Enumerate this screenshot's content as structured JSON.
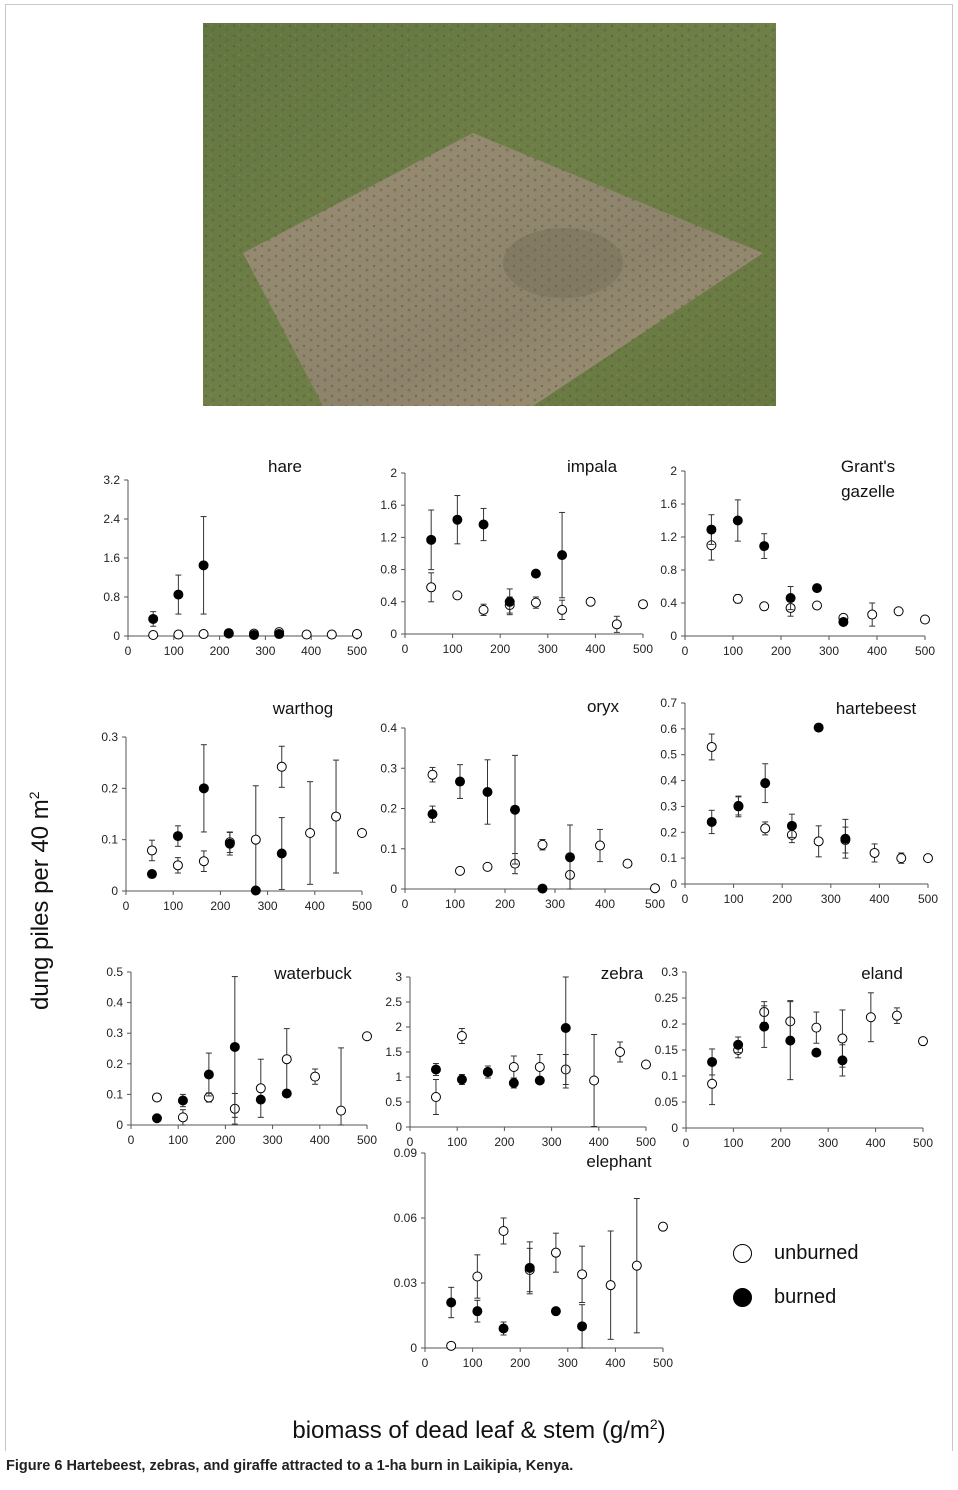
{
  "caption": {
    "label": "Figure 6",
    "text": "Hartebeest, zebras, and giraffe attracted to a 1-ha burn in Laikipia, Kenya."
  },
  "y_axis_label": "dung piles per 40 m",
  "y_axis_label_sup": "2",
  "x_axis_label": "biomass of dead leaf & stem (g/m",
  "x_axis_label_sup": "2",
  "x_axis_label_close": ")",
  "legend": {
    "unburned": "unburned",
    "burned": "burned"
  },
  "colors": {
    "burned": "#000000",
    "unburned": "#ffffff",
    "axis": "#555555"
  },
  "chart_data": [
    {
      "type": "scatter",
      "title": "hare",
      "xlim": [
        0,
        500
      ],
      "xticks": [
        "0",
        "100",
        "200",
        "300",
        "400",
        "500"
      ],
      "ylim": [
        0,
        3.2
      ],
      "yticks": [
        "0",
        "0.8",
        "1.6",
        "2.4",
        "3.2"
      ],
      "series": [
        {
          "name": "burned",
          "points": [
            [
              55,
              0.35,
              0.15
            ],
            [
              110,
              0.85,
              0.4
            ],
            [
              165,
              1.45,
              1.0
            ],
            [
              220,
              0.06,
              0.03
            ],
            [
              275,
              0.02,
              0.02
            ],
            [
              330,
              0.04,
              0.03
            ]
          ]
        },
        {
          "name": "unburned",
          "points": [
            [
              55,
              0.02,
              0
            ],
            [
              110,
              0.03,
              0
            ],
            [
              165,
              0.04,
              0
            ],
            [
              220,
              0.05,
              0
            ],
            [
              275,
              0.05,
              0
            ],
            [
              330,
              0.08,
              0
            ],
            [
              390,
              0.03,
              0
            ],
            [
              445,
              0.03,
              0
            ],
            [
              500,
              0.04,
              0
            ]
          ]
        }
      ]
    },
    {
      "type": "scatter",
      "title": "impala",
      "xlim": [
        0,
        500
      ],
      "xticks": [
        "0",
        "100",
        "200",
        "300",
        "400",
        "500"
      ],
      "ylim": [
        0,
        2
      ],
      "yticks": [
        "0",
        "0.4",
        "0.8",
        "1.2",
        "1.6",
        "2"
      ],
      "series": [
        {
          "name": "burned",
          "points": [
            [
              55,
              1.17,
              0.37
            ],
            [
              110,
              1.42,
              0.3
            ],
            [
              165,
              1.36,
              0.2
            ],
            [
              220,
              0.4,
              0.16
            ],
            [
              275,
              0.75,
              0
            ],
            [
              330,
              0.98,
              0.53
            ]
          ]
        },
        {
          "name": "unburned",
          "points": [
            [
              55,
              0.58,
              0.18
            ],
            [
              110,
              0.48,
              0.04
            ],
            [
              165,
              0.3,
              0.07
            ],
            [
              220,
              0.36,
              0.1
            ],
            [
              275,
              0.39,
              0.07
            ],
            [
              330,
              0.3,
              0.12
            ],
            [
              390,
              0.4,
              0
            ],
            [
              445,
              0.12,
              0.1
            ],
            [
              500,
              0.37,
              0
            ]
          ]
        }
      ]
    },
    {
      "type": "scatter",
      "title": "Grant's",
      "title2": "gazelle",
      "xlim": [
        0,
        500
      ],
      "xticks": [
        "0",
        "100",
        "200",
        "300",
        "400",
        "500"
      ],
      "ylim": [
        0,
        2
      ],
      "yticks": [
        "0",
        "0.4",
        "0.8",
        "1.2",
        "1.6",
        "2"
      ],
      "series": [
        {
          "name": "burned",
          "points": [
            [
              55,
              1.29,
              0.18
            ],
            [
              110,
              1.4,
              0.25
            ],
            [
              165,
              1.09,
              0.15
            ],
            [
              220,
              0.46,
              0.14
            ],
            [
              275,
              0.58,
              0
            ],
            [
              330,
              0.17,
              0.04
            ]
          ]
        },
        {
          "name": "unburned",
          "points": [
            [
              55,
              1.1,
              0.18
            ],
            [
              110,
              0.45,
              0.05
            ],
            [
              165,
              0.36,
              0
            ],
            [
              220,
              0.34,
              0.1
            ],
            [
              275,
              0.37,
              0
            ],
            [
              330,
              0.22,
              0.03
            ],
            [
              390,
              0.26,
              0.14
            ],
            [
              445,
              0.3,
              0
            ],
            [
              500,
              0.2,
              0
            ]
          ]
        }
      ]
    },
    {
      "type": "scatter",
      "title": "warthog",
      "xlim": [
        0,
        500
      ],
      "xticks": [
        "0",
        "100",
        "200",
        "300",
        "400",
        "500"
      ],
      "ylim": [
        0,
        0.3
      ],
      "yticks": [
        "0",
        "0.1",
        "0.2",
        "0.3"
      ],
      "series": [
        {
          "name": "burned",
          "points": [
            [
              55,
              0.033,
              0
            ],
            [
              110,
              0.107,
              0.02
            ],
            [
              165,
              0.2,
              0.085
            ],
            [
              220,
              0.092,
              0.022
            ],
            [
              275,
              0.001,
              0
            ],
            [
              330,
              0.073,
              0.07
            ]
          ]
        },
        {
          "name": "unburned",
          "points": [
            [
              55,
              0.079,
              0.02
            ],
            [
              110,
              0.05,
              0.015
            ],
            [
              165,
              0.058,
              0.02
            ],
            [
              220,
              0.095,
              0.02
            ],
            [
              275,
              0.1,
              0.105
            ],
            [
              330,
              0.242,
              0.04
            ],
            [
              390,
              0.113,
              0.1
            ],
            [
              445,
              0.145,
              0.11
            ],
            [
              500,
              0.113,
              0
            ]
          ]
        }
      ]
    },
    {
      "type": "scatter",
      "title": "oryx",
      "xlim": [
        0,
        500
      ],
      "xticks": [
        "0",
        "100",
        "200",
        "300",
        "400",
        "500"
      ],
      "ylim": [
        0,
        0.4
      ],
      "yticks": [
        "0",
        "0.1",
        "0.2",
        "0.3",
        "0.4"
      ],
      "series": [
        {
          "name": "burned",
          "points": [
            [
              55,
              0.186,
              0.02
            ],
            [
              110,
              0.267,
              0.042
            ],
            [
              165,
              0.241,
              0.08
            ],
            [
              220,
              0.197,
              0.135
            ],
            [
              275,
              0.001,
              0
            ],
            [
              330,
              0.079,
              0.08
            ]
          ]
        },
        {
          "name": "unburned",
          "points": [
            [
              55,
              0.284,
              0.018
            ],
            [
              110,
              0.045,
              0
            ],
            [
              165,
              0.055,
              0
            ],
            [
              220,
              0.063,
              0.025
            ],
            [
              275,
              0.11,
              0.013
            ],
            [
              330,
              0.035,
              0.035
            ],
            [
              390,
              0.108,
              0.04
            ],
            [
              445,
              0.063,
              0
            ],
            [
              500,
              0.002,
              0
            ]
          ]
        }
      ]
    },
    {
      "type": "scatter",
      "title": "hartebeest",
      "xlim": [
        0,
        500
      ],
      "xticks": [
        "0",
        "100",
        "200",
        "300",
        "400",
        "500"
      ],
      "ylim": [
        0,
        0.7
      ],
      "yticks": [
        "0",
        "0.1",
        "0.2",
        "0.3",
        "0.4",
        "0.5",
        "0.6",
        "0.7"
      ],
      "series": [
        {
          "name": "burned",
          "points": [
            [
              55,
              0.24,
              0.045
            ],
            [
              110,
              0.302,
              0.035
            ],
            [
              165,
              0.39,
              0.075
            ],
            [
              220,
              0.225,
              0.045
            ],
            [
              275,
              0.605,
              0
            ],
            [
              330,
              0.175,
              0.075
            ]
          ]
        },
        {
          "name": "unburned",
          "points": [
            [
              55,
              0.53,
              0.05
            ],
            [
              110,
              0.3,
              0.04
            ],
            [
              165,
              0.215,
              0.025
            ],
            [
              220,
              0.19,
              0.03
            ],
            [
              275,
              0.165,
              0.06
            ],
            [
              330,
              0.17,
              0.05
            ],
            [
              390,
              0.12,
              0.035
            ],
            [
              445,
              0.1,
              0.02
            ],
            [
              500,
              0.1,
              0
            ]
          ]
        }
      ]
    },
    {
      "type": "scatter",
      "title": "waterbuck",
      "xlim": [
        0,
        500
      ],
      "xticks": [
        "0",
        "100",
        "200",
        "300",
        "400",
        "500"
      ],
      "ylim": [
        0,
        0.5
      ],
      "yticks": [
        "0",
        "0.1",
        "0.2",
        "0.3",
        "0.4",
        "0.5"
      ],
      "series": [
        {
          "name": "burned",
          "points": [
            [
              55,
              0.022,
              0
            ],
            [
              110,
              0.08,
              0.02
            ],
            [
              165,
              0.165,
              0.07
            ],
            [
              220,
              0.255,
              0.23
            ],
            [
              275,
              0.083,
              0
            ],
            [
              330,
              0.103,
              0
            ]
          ]
        },
        {
          "name": "unburned",
          "points": [
            [
              55,
              0.09,
              0.01
            ],
            [
              110,
              0.025,
              0.025
            ],
            [
              165,
              0.09,
              0.015
            ],
            [
              220,
              0.053,
              0.05
            ],
            [
              275,
              0.12,
              0.095
            ],
            [
              330,
              0.215,
              0.1
            ],
            [
              390,
              0.158,
              0.025
            ],
            [
              445,
              0.047,
              0.205
            ],
            [
              500,
              0.29,
              0
            ]
          ]
        }
      ]
    },
    {
      "type": "scatter",
      "title": "zebra",
      "xlim": [
        0,
        500
      ],
      "xticks": [
        "0",
        "100",
        "200",
        "300",
        "400",
        "500"
      ],
      "ylim": [
        0,
        3
      ],
      "yticks": [
        "0",
        "0.5",
        "1",
        "1.5",
        "2",
        "2.5",
        "3"
      ],
      "series": [
        {
          "name": "burned",
          "points": [
            [
              55,
              1.15,
              0.12
            ],
            [
              110,
              0.95,
              0.1
            ],
            [
              165,
              1.1,
              0.12
            ],
            [
              220,
              0.88,
              0.1
            ],
            [
              275,
              0.93,
              0
            ],
            [
              330,
              1.98,
              1.2
            ]
          ]
        },
        {
          "name": "unburned",
          "points": [
            [
              55,
              0.6,
              0.35
            ],
            [
              110,
              1.82,
              0.15
            ],
            [
              165,
              1.1,
              0
            ],
            [
              220,
              1.2,
              0.22
            ],
            [
              275,
              1.2,
              0.25
            ],
            [
              330,
              1.15,
              0.3
            ],
            [
              390,
              0.93,
              0.92
            ],
            [
              445,
              1.5,
              0.2
            ],
            [
              500,
              1.25,
              0
            ]
          ]
        }
      ]
    },
    {
      "type": "scatter",
      "title": "eland",
      "xlim": [
        0,
        500
      ],
      "xticks": [
        "0",
        "100",
        "200",
        "300",
        "400",
        "500"
      ],
      "ylim": [
        0,
        0.3
      ],
      "yticks": [
        "0",
        "0.05",
        "0.1",
        "0.15",
        "0.2",
        "0.25",
        "0.3"
      ],
      "series": [
        {
          "name": "burned",
          "points": [
            [
              55,
              0.127,
              0.025
            ],
            [
              110,
              0.16,
              0.015
            ],
            [
              165,
              0.195,
              0.04
            ],
            [
              220,
              0.168,
              0.075
            ],
            [
              275,
              0.145,
              0
            ],
            [
              330,
              0.13,
              0.03
            ]
          ]
        },
        {
          "name": "unburned",
          "points": [
            [
              55,
              0.085,
              0.04
            ],
            [
              110,
              0.15,
              0.015
            ],
            [
              165,
              0.223,
              0.02
            ],
            [
              220,
              0.205,
              0.04
            ],
            [
              275,
              0.193,
              0.03
            ],
            [
              330,
              0.172,
              0.055
            ],
            [
              390,
              0.213,
              0.047
            ],
            [
              445,
              0.216,
              0.015
            ],
            [
              500,
              0.167,
              0
            ]
          ]
        }
      ]
    },
    {
      "type": "scatter",
      "title": "elephant",
      "xlim": [
        0,
        500
      ],
      "xticks": [
        "0",
        "100",
        "200",
        "300",
        "400",
        "500"
      ],
      "ylim": [
        0,
        0.09
      ],
      "yticks": [
        "0",
        "0.03",
        "0.06",
        "0.09"
      ],
      "series": [
        {
          "name": "burned",
          "points": [
            [
              55,
              0.021,
              0.007
            ],
            [
              110,
              0.017,
              0.005
            ],
            [
              165,
              0.009,
              0.003
            ],
            [
              220,
              0.037,
              0.012
            ],
            [
              275,
              0.017,
              0
            ],
            [
              330,
              0.01,
              0.01
            ]
          ]
        },
        {
          "name": "unburned",
          "points": [
            [
              55,
              0.001,
              0.001
            ],
            [
              110,
              0.033,
              0.01
            ],
            [
              165,
              0.054,
              0.006
            ],
            [
              220,
              0.036,
              0.01
            ],
            [
              275,
              0.044,
              0.009
            ],
            [
              330,
              0.034,
              0.013
            ],
            [
              390,
              0.029,
              0.025
            ],
            [
              445,
              0.038,
              0.031
            ],
            [
              500,
              0.056,
              0
            ]
          ]
        }
      ]
    }
  ]
}
